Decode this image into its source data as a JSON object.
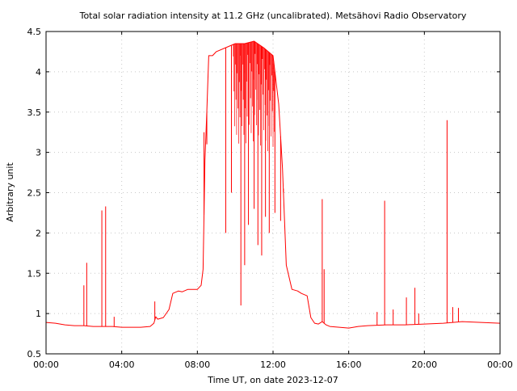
{
  "chart_data": {
    "type": "line",
    "title": "Total solar radiation intensity at 11.2 GHz (uncalibrated). Metsähovi Radio Observatory",
    "xlabel": "Time UT, on date 2023-12-07",
    "ylabel": "Arbitrary unit",
    "xlim": [
      0,
      24
    ],
    "ylim": [
      0.5,
      4.5
    ],
    "x_tick_labels": [
      "00:00",
      "04:00",
      "08:00",
      "12:00",
      "16:00",
      "20:00",
      "00:00"
    ],
    "y_tick_labels": [
      "0.5",
      "1",
      "1.5",
      "2",
      "2.5",
      "3",
      "3.5",
      "4",
      "4.5"
    ],
    "grid": true,
    "line_color": "#ff0000",
    "series": [
      {
        "x": [
          0.0,
          0.5,
          1.0,
          1.5,
          2.0,
          2.5,
          3.0,
          3.5,
          4.0,
          4.5,
          5.0,
          5.5,
          5.7,
          5.8,
          5.9,
          6.2,
          6.5,
          6.7,
          7.0,
          7.2,
          7.5,
          8.0,
          8.2,
          8.3,
          8.4,
          8.5,
          8.6,
          8.8,
          9.0,
          9.5,
          10.0,
          10.5,
          11.0,
          11.5,
          12.0,
          12.3,
          12.5,
          12.7,
          13.0,
          13.3,
          13.5,
          13.8,
          14.0,
          14.2,
          14.4,
          14.6,
          14.8,
          15.0,
          15.5,
          16.0,
          16.5,
          17.0,
          18.0,
          19.0,
          20.0,
          21.0,
          22.0,
          23.0,
          24.0
        ],
        "y": [
          0.89,
          0.88,
          0.86,
          0.85,
          0.85,
          0.84,
          0.84,
          0.84,
          0.83,
          0.83,
          0.83,
          0.84,
          0.88,
          0.96,
          0.93,
          0.95,
          1.05,
          1.25,
          1.28,
          1.27,
          1.3,
          1.3,
          1.35,
          1.55,
          2.9,
          3.5,
          4.2,
          4.2,
          4.25,
          4.3,
          4.35,
          4.35,
          4.38,
          4.3,
          4.2,
          3.6,
          2.8,
          1.6,
          1.3,
          1.28,
          1.25,
          1.22,
          0.95,
          0.88,
          0.87,
          0.9,
          0.86,
          0.84,
          0.83,
          0.82,
          0.84,
          0.85,
          0.86,
          0.86,
          0.87,
          0.88,
          0.9,
          0.89,
          0.88
        ],
        "spikes": [
          {
            "x": 2.0,
            "y": 1.35
          },
          {
            "x": 2.15,
            "y": 1.63
          },
          {
            "x": 2.95,
            "y": 2.28
          },
          {
            "x": 3.15,
            "y": 2.33
          },
          {
            "x": 3.6,
            "y": 0.96
          },
          {
            "x": 5.75,
            "y": 1.15
          },
          {
            "x": 8.35,
            "y": 3.25
          },
          {
            "x": 8.5,
            "y": 3.1
          },
          {
            "x": 9.5,
            "y": 2.0
          },
          {
            "x": 9.8,
            "y": 2.5
          },
          {
            "x": 10.3,
            "y": 1.1
          },
          {
            "x": 10.5,
            "y": 1.6
          },
          {
            "x": 10.7,
            "y": 2.1
          },
          {
            "x": 11.0,
            "y": 2.3
          },
          {
            "x": 11.2,
            "y": 1.85
          },
          {
            "x": 11.4,
            "y": 1.72
          },
          {
            "x": 11.6,
            "y": 2.2
          },
          {
            "x": 11.8,
            "y": 2.0
          },
          {
            "x": 12.1,
            "y": 2.25
          },
          {
            "x": 12.4,
            "y": 2.15
          },
          {
            "x": 12.55,
            "y": 2.55
          },
          {
            "x": 14.6,
            "y": 2.42
          },
          {
            "x": 14.7,
            "y": 1.55
          },
          {
            "x": 17.5,
            "y": 1.02
          },
          {
            "x": 17.9,
            "y": 2.4
          },
          {
            "x": 18.35,
            "y": 1.05
          },
          {
            "x": 19.05,
            "y": 1.2
          },
          {
            "x": 19.5,
            "y": 1.32
          },
          {
            "x": 19.7,
            "y": 1.0
          },
          {
            "x": 21.2,
            "y": 3.4
          },
          {
            "x": 21.5,
            "y": 1.08
          },
          {
            "x": 21.8,
            "y": 1.07
          }
        ]
      }
    ]
  }
}
